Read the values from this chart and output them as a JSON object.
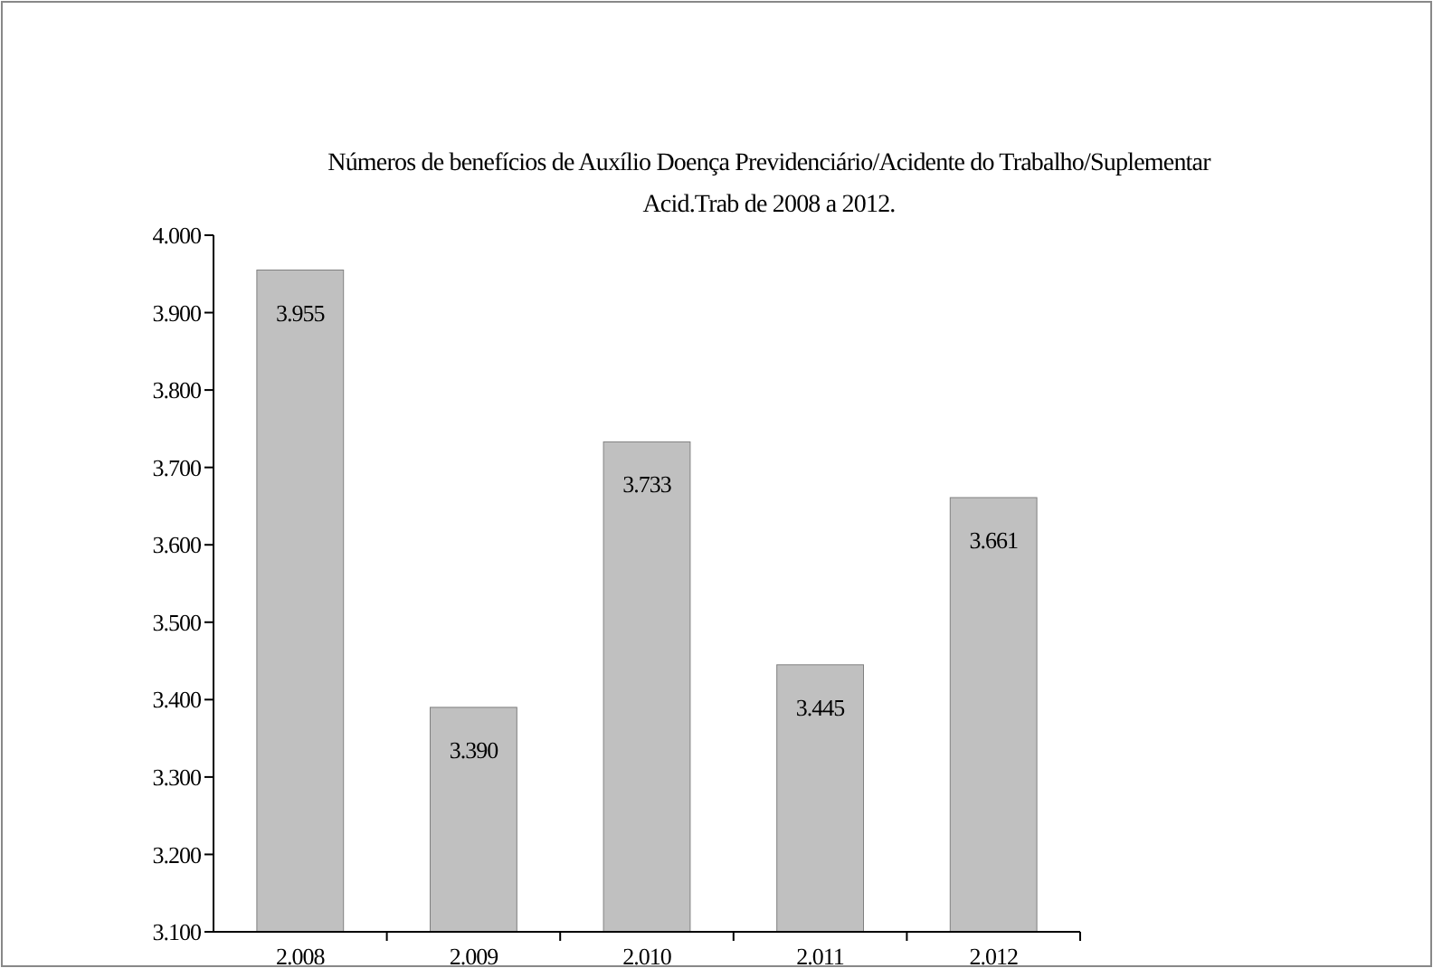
{
  "chart_data": {
    "type": "bar",
    "title": "Números de benefícios de Auxílio Doença Previdenciário/Acidente do Trabalho/Suplementar Acid.Trab de 2008 a 2012.",
    "categories": [
      "2.008",
      "2.009",
      "2.010",
      "2.011",
      "2.012"
    ],
    "values": [
      3955,
      3390,
      3733,
      3445,
      3661
    ],
    "value_labels": [
      "3.955",
      "3.390",
      "3.733",
      "3.445",
      "3.661"
    ],
    "color": "#c0c0c0",
    "ylim": [
      3100,
      4000
    ],
    "yticks": [
      {
        "value": 3100,
        "label": "3.100"
      },
      {
        "value": 3200,
        "label": "3.200"
      },
      {
        "value": 3300,
        "label": "3.300"
      },
      {
        "value": 3400,
        "label": "3.400"
      },
      {
        "value": 3500,
        "label": "3.500"
      },
      {
        "value": 3600,
        "label": "3.600"
      },
      {
        "value": 3700,
        "label": "3.700"
      },
      {
        "value": 3800,
        "label": "3.800"
      },
      {
        "value": 3900,
        "label": "3.900"
      },
      {
        "value": 4000,
        "label": "4.000"
      }
    ],
    "grid": false
  }
}
